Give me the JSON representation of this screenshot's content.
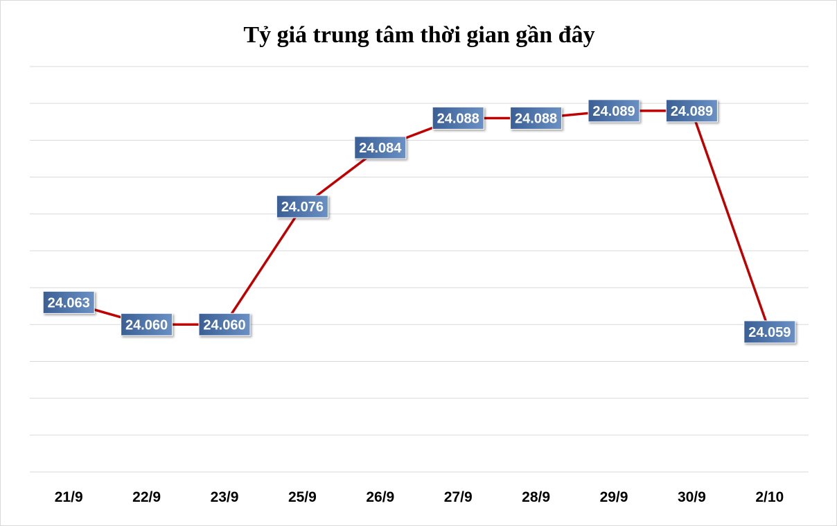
{
  "colors": {
    "line": "#c00000",
    "label_box_dark": "#3a5f95",
    "label_box_light": "#6a90c4",
    "gridline": "#d9d9d9"
  },
  "chart_data": {
    "type": "line",
    "title": "Tỷ giá trung tâm thời gian gần đây",
    "xlabel": "",
    "ylabel": "",
    "categories": [
      "21/9",
      "22/9",
      "23/9",
      "25/9",
      "26/9",
      "27/9",
      "28/9",
      "29/9",
      "30/9",
      "2/10"
    ],
    "series": [
      {
        "values": [
          24063,
          24060,
          24060,
          24076,
          24084,
          24088,
          24088,
          24089,
          24089,
          24059
        ],
        "labels": [
          "24.063",
          "24.060",
          "24.060",
          "24.076",
          "24.084",
          "24.088",
          "24.088",
          "24.089",
          "24.089",
          "24.059"
        ]
      }
    ],
    "ylim": [
      24040,
      24095
    ],
    "y_gridline_step": 5,
    "y_axis_labels_shown": false,
    "grid": true,
    "legend": "none"
  }
}
